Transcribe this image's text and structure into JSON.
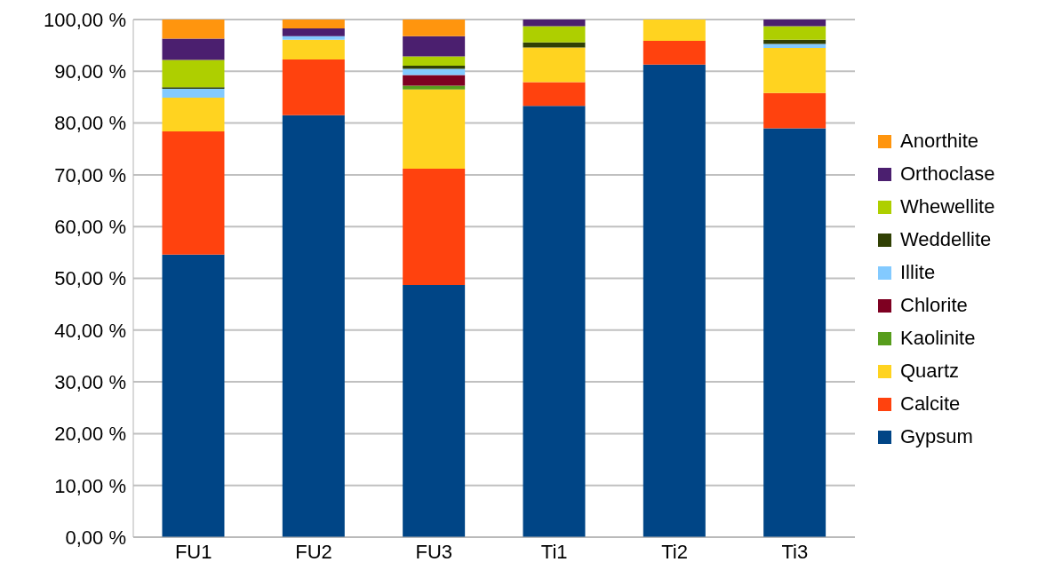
{
  "chart_data": {
    "type": "bar",
    "stacked": true,
    "categories": [
      "FU1",
      "FU2",
      "FU3",
      "Ti1",
      "Ti2",
      "Ti3"
    ],
    "series": [
      {
        "name": "Gypsum",
        "color": "#004586",
        "values": [
          54.6,
          81.5,
          48.7,
          83.3,
          91.3,
          79.0
        ]
      },
      {
        "name": "Calcite",
        "color": "#ff420e",
        "values": [
          23.8,
          10.8,
          22.5,
          4.6,
          4.6,
          6.8
        ]
      },
      {
        "name": "Quartz",
        "color": "#ffd320",
        "values": [
          6.5,
          3.8,
          15.3,
          6.7,
          4.1,
          8.7
        ]
      },
      {
        "name": "Kaolinite",
        "color": "#579d1c",
        "values": [
          0,
          0,
          0.7,
          0,
          0,
          0
        ]
      },
      {
        "name": "Chlorite",
        "color": "#7e0021",
        "values": [
          0,
          0,
          2.1,
          0,
          0,
          0
        ]
      },
      {
        "name": "Illite",
        "color": "#83caff",
        "values": [
          1.7,
          0.7,
          1.2,
          0,
          0,
          0.8
        ]
      },
      {
        "name": "Weddellite",
        "color": "#314004",
        "values": [
          0.3,
          0,
          0.6,
          1.0,
          0,
          0.8
        ]
      },
      {
        "name": "Whewellite",
        "color": "#aecf00",
        "values": [
          5.3,
          0,
          1.8,
          3.1,
          0,
          2.6
        ]
      },
      {
        "name": "Orthoclase",
        "color": "#4b1f6f",
        "values": [
          4.1,
          1.5,
          3.9,
          1.3,
          0,
          1.3
        ]
      },
      {
        "name": "Anorthite",
        "color": "#ff950e",
        "values": [
          3.7,
          1.7,
          3.2,
          0,
          0,
          0
        ]
      }
    ],
    "ylim": [
      0,
      100
    ],
    "yticks": [
      {
        "value": 0,
        "label": "0,00 %"
      },
      {
        "value": 10,
        "label": "10,00 %"
      },
      {
        "value": 20,
        "label": "20,00 %"
      },
      {
        "value": 30,
        "label": "30,00 %"
      },
      {
        "value": 40,
        "label": "40,00 %"
      },
      {
        "value": 50,
        "label": "50,00 %"
      },
      {
        "value": 60,
        "label": "60,00 %"
      },
      {
        "value": 70,
        "label": "70,00 %"
      },
      {
        "value": 80,
        "label": "80,00 %"
      },
      {
        "value": 90,
        "label": "90,00 %"
      },
      {
        "value": 100,
        "label": "100,00 %"
      }
    ],
    "grid": "y",
    "legend": "right"
  }
}
